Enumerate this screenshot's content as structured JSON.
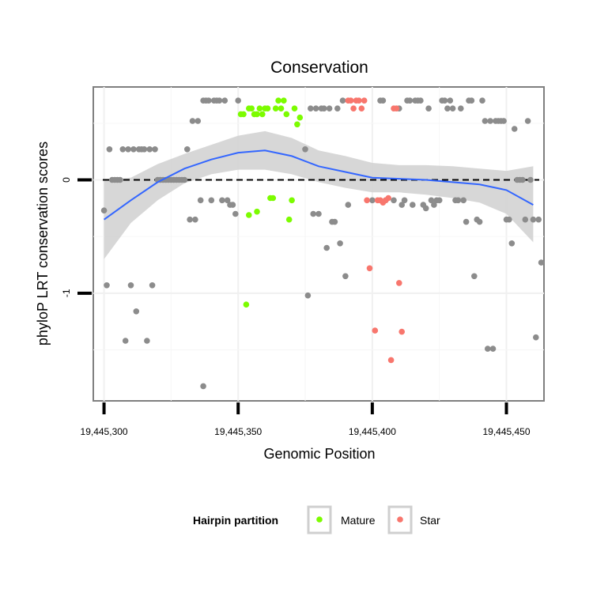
{
  "chart_data": {
    "type": "scatter",
    "title": "Conservation",
    "xlabel": "Genomic Position",
    "ylabel": "phyloP LRT conservation scores",
    "xlim": [
      19445296,
      19445464
    ],
    "ylim": [
      -1.95,
      0.82
    ],
    "x_ticks": [
      19445300,
      19445350,
      19445400,
      19445450
    ],
    "x_tick_labels": [
      "19,445,300",
      "19,445,350",
      "19,445,400",
      "19,445,450"
    ],
    "y_ticks": [
      0,
      -1
    ],
    "y_tick_labels": [
      "0",
      "-1"
    ],
    "reference_line": {
      "y": 0,
      "style": "dashed"
    },
    "legend": {
      "title": "Hairpin partition",
      "position": "bottom",
      "entries": [
        {
          "name": "Mature",
          "color": "#7CFC00"
        },
        {
          "name": "Star",
          "color": "#F8766D"
        }
      ]
    },
    "colors": {
      "other": "#8C8C8C",
      "Mature": "#7CFC00",
      "Star": "#F8766D",
      "smooth": "#3366FF",
      "ribbon": "#D3D3D3"
    },
    "series": [
      {
        "name": "Other",
        "points": [
          [
            19445300,
            -0.27
          ],
          [
            19445301,
            -0.93
          ],
          [
            19445302,
            0.27
          ],
          [
            19445303,
            0
          ],
          [
            19445304,
            0
          ],
          [
            19445305,
            0
          ],
          [
            19445306,
            0
          ],
          [
            19445307,
            0.27
          ],
          [
            19445308,
            -1.42
          ],
          [
            19445309,
            0.27
          ],
          [
            19445310,
            -0.93
          ],
          [
            19445311,
            0.27
          ],
          [
            19445312,
            -1.16
          ],
          [
            19445313,
            0.27
          ],
          [
            19445314,
            0.27
          ],
          [
            19445315,
            0.27
          ],
          [
            19445316,
            -1.42
          ],
          [
            19445317,
            0.27
          ],
          [
            19445318,
            -0.93
          ],
          [
            19445319,
            0.27
          ],
          [
            19445320,
            0
          ],
          [
            19445321,
            0
          ],
          [
            19445322,
            0
          ],
          [
            19445323,
            0
          ],
          [
            19445324,
            0
          ],
          [
            19445325,
            0
          ],
          [
            19445326,
            0
          ],
          [
            19445327,
            0
          ],
          [
            19445328,
            0
          ],
          [
            19445329,
            0
          ],
          [
            19445330,
            0
          ],
          [
            19445331,
            0.27
          ],
          [
            19445332,
            -0.35
          ],
          [
            19445333,
            0.52
          ],
          [
            19445334,
            -0.35
          ],
          [
            19445335,
            0.52
          ],
          [
            19445336,
            -0.18
          ],
          [
            19445337,
            0.7
          ],
          [
            19445338,
            0.7
          ],
          [
            19445339,
            0.7
          ],
          [
            19445340,
            -0.18
          ],
          [
            19445341,
            0.7
          ],
          [
            19445342,
            0.7
          ],
          [
            19445343,
            0.7
          ],
          [
            19445344,
            -0.18
          ],
          [
            19445345,
            0.7
          ],
          [
            19445346,
            -0.18
          ],
          [
            19445347,
            -0.22
          ],
          [
            19445348,
            -0.22
          ],
          [
            19445349,
            -0.3
          ],
          [
            19445350,
            0.7
          ],
          [
            19445375,
            0.27
          ],
          [
            19445376,
            -1.02
          ],
          [
            19445377,
            0.63
          ],
          [
            19445378,
            -0.3
          ],
          [
            19445379,
            0.63
          ],
          [
            19445380,
            -0.3
          ],
          [
            19445381,
            0.63
          ],
          [
            19445382,
            0.63
          ],
          [
            19445383,
            -0.6
          ],
          [
            19445384,
            0.63
          ],
          [
            19445385,
            -0.37
          ],
          [
            19445386,
            -0.37
          ],
          [
            19445387,
            0.63
          ],
          [
            19445388,
            -0.56
          ],
          [
            19445389,
            0.7
          ],
          [
            19445390,
            -0.85
          ],
          [
            19445391,
            -0.22
          ],
          [
            19445400,
            -0.18
          ],
          [
            19445403,
            0.7
          ],
          [
            19445404,
            0.7
          ],
          [
            19445405,
            -0.18
          ],
          [
            19445408,
            -0.18
          ],
          [
            19445410,
            0.63
          ],
          [
            19445411,
            -0.22
          ],
          [
            19445412,
            -0.18
          ],
          [
            19445413,
            0.7
          ],
          [
            19445414,
            0.7
          ],
          [
            19445415,
            -0.22
          ],
          [
            19445416,
            0.7
          ],
          [
            19445417,
            0.7
          ],
          [
            19445418,
            0.7
          ],
          [
            19445419,
            -0.22
          ],
          [
            19445420,
            -0.25
          ],
          [
            19445421,
            0.63
          ],
          [
            19445422,
            -0.18
          ],
          [
            19445423,
            -0.22
          ],
          [
            19445424,
            -0.18
          ],
          [
            19445425,
            -0.18
          ],
          [
            19445426,
            0.7
          ],
          [
            19445427,
            0.7
          ],
          [
            19445428,
            0.63
          ],
          [
            19445429,
            0.7
          ],
          [
            19445430,
            0.63
          ],
          [
            19445431,
            -0.18
          ],
          [
            19445432,
            -0.18
          ],
          [
            19445433,
            0.63
          ],
          [
            19445434,
            -0.18
          ],
          [
            19445435,
            -0.37
          ],
          [
            19445436,
            0.7
          ],
          [
            19445437,
            0.7
          ],
          [
            19445438,
            -0.85
          ],
          [
            19445439,
            -0.35
          ],
          [
            19445440,
            -0.37
          ],
          [
            19445441,
            0.7
          ],
          [
            19445442,
            0.52
          ],
          [
            19445443,
            -1.49
          ],
          [
            19445444,
            0.52
          ],
          [
            19445445,
            -1.49
          ],
          [
            19445446,
            0.52
          ],
          [
            19445447,
            0.52
          ],
          [
            19445448,
            0.52
          ],
          [
            19445449,
            0.52
          ],
          [
            19445450,
            -0.35
          ],
          [
            19445451,
            -0.35
          ],
          [
            19445452,
            -0.56
          ],
          [
            19445453,
            0.45
          ],
          [
            19445454,
            0
          ],
          [
            19445455,
            0
          ],
          [
            19445456,
            0
          ],
          [
            19445457,
            -0.35
          ],
          [
            19445458,
            0.52
          ],
          [
            19445459,
            0
          ],
          [
            19445460,
            -0.35
          ],
          [
            19445461,
            -1.39
          ],
          [
            19445462,
            -0.35
          ],
          [
            19445463,
            -0.73
          ],
          [
            19445337,
            -1.82
          ]
        ]
      },
      {
        "name": "Mature",
        "points": [
          [
            19445351,
            0.58
          ],
          [
            19445352,
            0.58
          ],
          [
            19445353,
            -1.1
          ],
          [
            19445354,
            0.63
          ],
          [
            19445355,
            0.63
          ],
          [
            19445356,
            0.58
          ],
          [
            19445357,
            0.58
          ],
          [
            19445358,
            0.63
          ],
          [
            19445359,
            0.58
          ],
          [
            19445360,
            0.63
          ],
          [
            19445361,
            0.63
          ],
          [
            19445362,
            -0.16
          ],
          [
            19445363,
            -0.16
          ],
          [
            19445364,
            0.63
          ],
          [
            19445365,
            0.7
          ],
          [
            19445366,
            0.63
          ],
          [
            19445367,
            0.7
          ],
          [
            19445368,
            0.58
          ],
          [
            19445369,
            -0.35
          ],
          [
            19445370,
            -0.18
          ],
          [
            19445371,
            0.63
          ],
          [
            19445372,
            0.49
          ],
          [
            19445373,
            0.55
          ],
          [
            19445354,
            -0.31
          ],
          [
            19445357,
            -0.28
          ]
        ]
      },
      {
        "name": "Star",
        "points": [
          [
            19445391,
            0.7
          ],
          [
            19445392,
            0.7
          ],
          [
            19445393,
            0.63
          ],
          [
            19445394,
            0.7
          ],
          [
            19445395,
            0.7
          ],
          [
            19445396,
            0.63
          ],
          [
            19445397,
            0.7
          ],
          [
            19445398,
            -0.18
          ],
          [
            19445399,
            -0.78
          ],
          [
            19445401,
            -1.33
          ],
          [
            19445402,
            -0.18
          ],
          [
            19445403,
            -0.18
          ],
          [
            19445404,
            -0.2
          ],
          [
            19445405,
            -0.18
          ],
          [
            19445406,
            -0.16
          ],
          [
            19445407,
            -1.59
          ],
          [
            19445408,
            0.63
          ],
          [
            19445409,
            0.63
          ],
          [
            19445410,
            -0.91
          ],
          [
            19445411,
            -1.34
          ]
        ]
      }
    ],
    "smooth_fit": [
      [
        19445300,
        -0.35,
        -0.7,
        0.0
      ],
      [
        19445310,
        -0.18,
        -0.38,
        0.02
      ],
      [
        19445320,
        -0.02,
        -0.18,
        0.14
      ],
      [
        19445330,
        0.1,
        -0.03,
        0.23
      ],
      [
        19445340,
        0.18,
        0.05,
        0.31
      ],
      [
        19445350,
        0.24,
        0.09,
        0.39
      ],
      [
        19445360,
        0.26,
        0.09,
        0.43
      ],
      [
        19445370,
        0.21,
        0.05,
        0.37
      ],
      [
        19445380,
        0.12,
        -0.02,
        0.26
      ],
      [
        19445390,
        0.07,
        -0.07,
        0.21
      ],
      [
        19445400,
        0.02,
        -0.11,
        0.15
      ],
      [
        19445410,
        0.01,
        -0.11,
        0.13
      ],
      [
        19445420,
        0.0,
        -0.13,
        0.13
      ],
      [
        19445430,
        -0.02,
        -0.16,
        0.12
      ],
      [
        19445440,
        -0.04,
        -0.2,
        0.1
      ],
      [
        19445450,
        -0.09,
        -0.3,
        0.08
      ],
      [
        19445460,
        -0.22,
        -0.55,
        0.12
      ]
    ]
  }
}
